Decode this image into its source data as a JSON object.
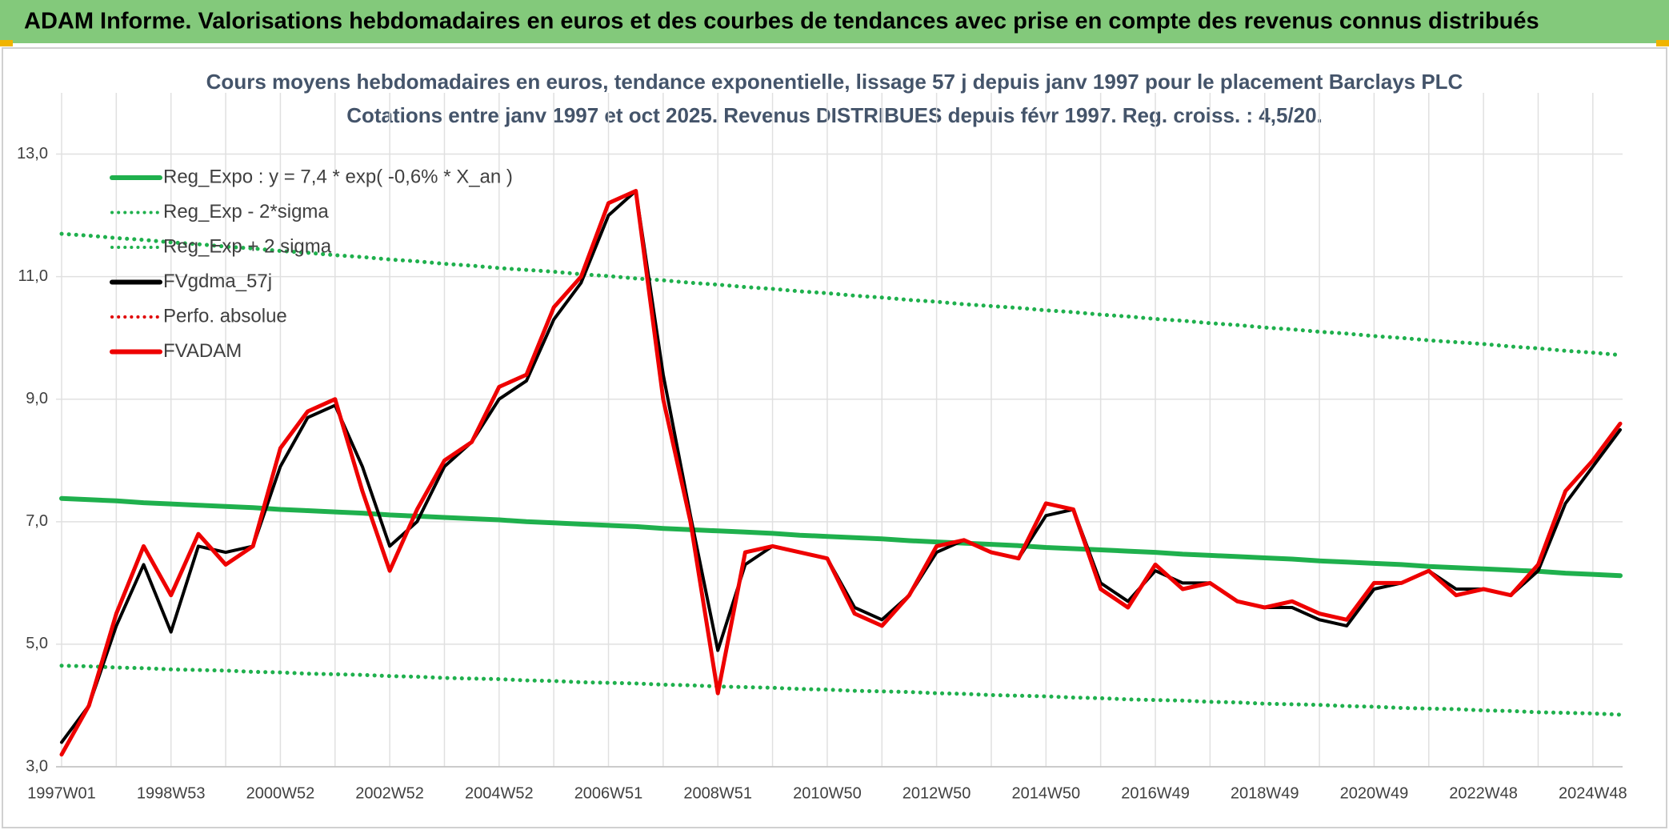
{
  "header": {
    "title": "ADAM Informe. Valorisations hebdomadaires en euros et des courbes de tendances avec prise en compte des revenus connus distribués"
  },
  "chart_data": {
    "type": "line",
    "title": "Cours moyens hebdomadaires en euros, tendance exponentielle, lissage 57 j depuis janv 1997 pour le placement Barclays PLC",
    "subtitle": "Cotations entre janv 1997 et oct 2025. Revenus DISTRIBUES depuis févr 1997. Reg. croiss. : 4,5/20.",
    "categories": [
      "1997W01",
      null,
      null,
      null,
      "1998W53",
      null,
      null,
      null,
      "2000W52",
      null,
      null,
      null,
      "2002W52",
      null,
      null,
      null,
      "2004W52",
      null,
      null,
      null,
      "2006W51",
      null,
      null,
      null,
      "2008W51",
      null,
      null,
      null,
      "2010W50",
      null,
      null,
      null,
      "2012W50",
      null,
      null,
      null,
      "2014W50",
      null,
      null,
      null,
      "2016W49",
      null,
      null,
      null,
      "2018W49",
      null,
      null,
      null,
      "2020W49",
      null,
      null,
      null,
      "2022W48",
      null,
      null,
      null,
      "2024W48",
      null
    ],
    "ylim": [
      3,
      14
    ],
    "yticks": [
      {
        "value": 3,
        "label": "3,0"
      },
      {
        "value": 5,
        "label": "5,0"
      },
      {
        "value": 7,
        "label": "7,0"
      },
      {
        "value": 9,
        "label": "9,0"
      },
      {
        "value": 11,
        "label": "11,0"
      },
      {
        "value": 13,
        "label": "13,0"
      }
    ],
    "grid": true,
    "legend": "top-left",
    "series": [
      {
        "name": "Reg_Expo : y = 7,4 * exp( -0,6% *  X_an )",
        "color": "#1fb04d",
        "style": "solid",
        "values": [
          7.38,
          7.36,
          7.34,
          7.31,
          7.29,
          7.27,
          7.25,
          7.23,
          7.2,
          7.18,
          7.16,
          7.14,
          7.11,
          7.09,
          7.07,
          7.05,
          7.03,
          7.0,
          6.98,
          6.96,
          6.94,
          6.92,
          6.89,
          6.87,
          6.85,
          6.83,
          6.81,
          6.78,
          6.76,
          6.74,
          6.72,
          6.69,
          6.67,
          6.65,
          6.63,
          6.61,
          6.58,
          6.56,
          6.54,
          6.52,
          6.5,
          6.47,
          6.45,
          6.43,
          6.41,
          6.39,
          6.36,
          6.34,
          6.32,
          6.3,
          6.27,
          6.25,
          6.23,
          6.21,
          6.19,
          6.16,
          6.14,
          6.12
        ]
      },
      {
        "name": "Reg_Exp - 2*sigma",
        "color": "#1fb04d",
        "style": "dotted",
        "values": [
          4.65,
          4.64,
          4.62,
          4.61,
          4.59,
          4.58,
          4.57,
          4.55,
          4.54,
          4.52,
          4.51,
          4.5,
          4.48,
          4.47,
          4.45,
          4.44,
          4.43,
          4.41,
          4.4,
          4.38,
          4.37,
          4.36,
          4.34,
          4.33,
          4.31,
          4.3,
          4.29,
          4.27,
          4.26,
          4.24,
          4.23,
          4.22,
          4.2,
          4.19,
          4.17,
          4.16,
          4.15,
          4.13,
          4.12,
          4.1,
          4.09,
          4.08,
          4.06,
          4.05,
          4.03,
          4.02,
          4.01,
          3.99,
          3.98,
          3.96,
          3.95,
          3.94,
          3.92,
          3.91,
          3.89,
          3.88,
          3.87,
          3.85
        ]
      },
      {
        "name": "Reg_Exp + 2 sigma",
        "color": "#1fb04d",
        "style": "dotted",
        "values": [
          11.7,
          11.67,
          11.63,
          11.6,
          11.56,
          11.53,
          11.49,
          11.46,
          11.42,
          11.39,
          11.35,
          11.32,
          11.28,
          11.25,
          11.21,
          11.18,
          11.14,
          11.11,
          11.08,
          11.04,
          11.01,
          10.97,
          10.94,
          10.9,
          10.87,
          10.83,
          10.8,
          10.76,
          10.73,
          10.69,
          10.66,
          10.62,
          10.59,
          10.55,
          10.52,
          10.49,
          10.45,
          10.42,
          10.38,
          10.35,
          10.31,
          10.28,
          10.24,
          10.21,
          10.17,
          10.14,
          10.1,
          10.07,
          10.03,
          10.0,
          9.96,
          9.93,
          9.9,
          9.86,
          9.83,
          9.79,
          9.76,
          9.72
        ]
      },
      {
        "name": "FVgdma_57j",
        "color": "#000000",
        "style": "solid",
        "values": [
          3.4,
          4.0,
          5.3,
          6.3,
          5.2,
          6.6,
          6.5,
          6.6,
          7.9,
          8.7,
          8.9,
          7.9,
          6.6,
          7.0,
          7.9,
          8.3,
          9.0,
          9.3,
          10.3,
          10.9,
          12.0,
          12.4,
          9.4,
          7.1,
          4.9,
          6.3,
          6.6,
          6.5,
          6.4,
          5.6,
          5.4,
          5.8,
          6.5,
          6.7,
          6.5,
          6.4,
          7.1,
          7.2,
          6.0,
          5.7,
          6.2,
          6.0,
          6.0,
          5.7,
          5.6,
          5.6,
          5.4,
          5.3,
          5.9,
          6.0,
          6.2,
          5.9,
          5.9,
          5.8,
          6.2,
          7.3,
          7.9,
          8.5
        ]
      },
      {
        "name": "Perfo. absolue",
        "color": "#e00000",
        "style": "dotted",
        "values": [
          null,
          null,
          null,
          null,
          null,
          null,
          null,
          null,
          null,
          null,
          null,
          null,
          null,
          null,
          null,
          null,
          null,
          null,
          null,
          null,
          null,
          null,
          null,
          null,
          null,
          null,
          null,
          null,
          null,
          null,
          null,
          null,
          null,
          null,
          null,
          null,
          null,
          null,
          null,
          null,
          null,
          null,
          null,
          null,
          null,
          null,
          null,
          null,
          null,
          null,
          null,
          null,
          null,
          null,
          null,
          null,
          null,
          null
        ]
      },
      {
        "name": "FVADAM",
        "color": "#ee0000",
        "style": "solid",
        "values": [
          3.2,
          4.0,
          5.5,
          6.6,
          5.8,
          6.8,
          6.3,
          6.6,
          8.2,
          8.8,
          9.0,
          7.5,
          6.2,
          7.2,
          8.0,
          8.3,
          9.2,
          9.4,
          10.5,
          11.0,
          12.2,
          12.4,
          9.0,
          7.0,
          4.2,
          6.5,
          6.6,
          6.5,
          6.4,
          5.5,
          5.3,
          5.8,
          6.6,
          6.7,
          6.5,
          6.4,
          7.3,
          7.2,
          5.9,
          5.6,
          6.3,
          5.9,
          6.0,
          5.7,
          5.6,
          5.7,
          5.5,
          5.4,
          6.0,
          6.0,
          6.2,
          5.8,
          5.9,
          5.8,
          6.3,
          7.5,
          8.0,
          8.6
        ]
      }
    ]
  }
}
